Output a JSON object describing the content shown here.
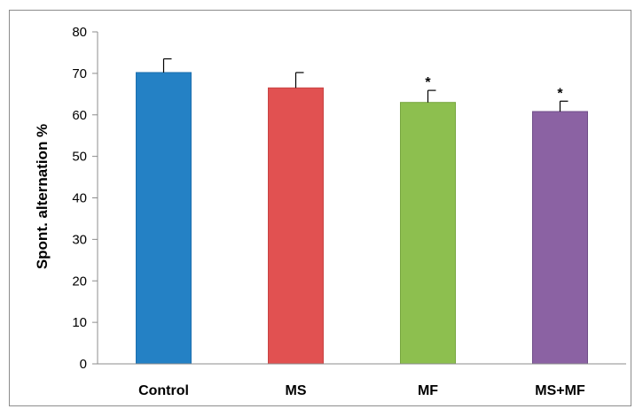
{
  "chart_data": {
    "type": "bar",
    "categories": [
      "Control",
      "MS",
      "MF",
      "MS+MF"
    ],
    "values": [
      70.2,
      66.5,
      63.0,
      60.8
    ],
    "error_upper": [
      3.3,
      3.7,
      2.9,
      2.5
    ],
    "significance": [
      "",
      "",
      "*",
      "*"
    ],
    "colors": [
      "#2481c5",
      "#e15151",
      "#8dbf4f",
      "#8b62a3"
    ],
    "bar_edge_colors": [
      "#1e6fae",
      "#c84343",
      "#77a63f",
      "#6f4e88"
    ],
    "title": "",
    "xlabel": "",
    "ylabel": "Spont. alternation %",
    "ylim": [
      0,
      80
    ],
    "yticks": [
      0,
      10,
      20,
      30,
      40,
      50,
      60,
      70,
      80
    ],
    "ytick_labels": [
      "0",
      "10",
      "20",
      "30",
      "40",
      "50",
      "60",
      "70",
      "80"
    ],
    "grid": false,
    "legend": "none"
  }
}
